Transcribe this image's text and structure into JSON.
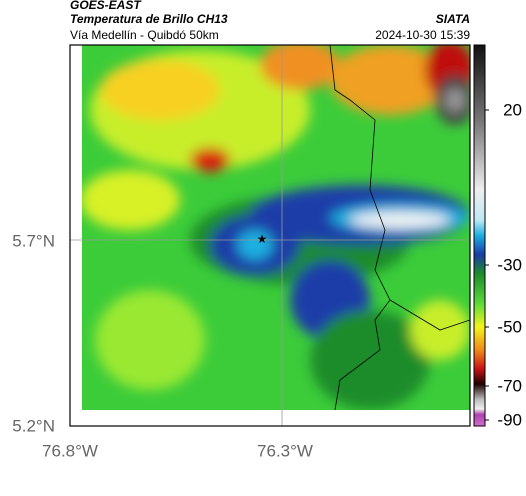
{
  "header": {
    "source": "GOES-EAST",
    "title": "Temperatura de Brillo CH13",
    "agency": "SIATA",
    "subtitle": "Vía Medellín - Quibdó 50km",
    "timestamp": "2024-10-30 15:39"
  },
  "map": {
    "lat_labels": [
      "5.7°N",
      "5.2°N"
    ],
    "lon_labels": [
      "76.8°W",
      "76.3°W"
    ]
  },
  "colorbar": {
    "labels": [
      "20",
      "-30",
      "-50",
      "-70",
      "-90"
    ]
  }
}
